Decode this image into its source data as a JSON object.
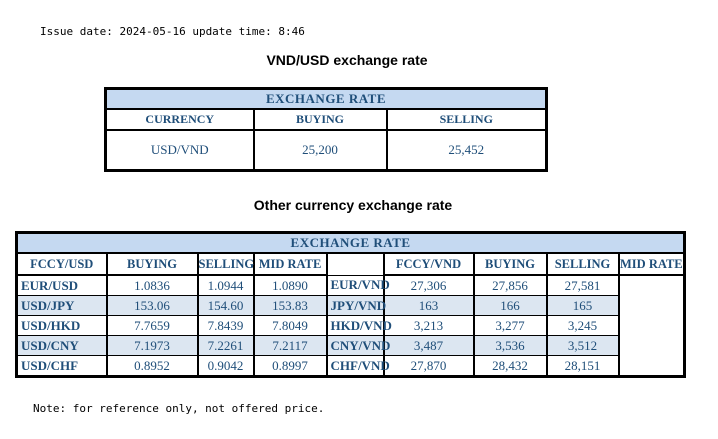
{
  "page": {
    "issue_line": "Issue date: 2024-05-16 update time: 8:46",
    "note_line": "Note: for reference only, not offered price."
  },
  "colors": {
    "header_bg": "#C5D9F1",
    "alt_row_bg": "#DCE6F1",
    "table_text": "#1F4E79",
    "border": "#000000"
  },
  "usd_table": {
    "title": "VND/USD exchange rate",
    "header": "EXCHANGE RATE",
    "columns": [
      "CURRENCY",
      "BUYING",
      "SELLING"
    ],
    "rows": [
      [
        "USD/VND",
        "25,200",
        "25,452"
      ]
    ]
  },
  "other_table": {
    "title": "Other currency exchange rate",
    "header": "EXCHANGE  RATE",
    "left": {
      "columns": [
        "FCCY/USD",
        "BUYING",
        "SELLING",
        "MID RATE"
      ],
      "rows": [
        [
          "EUR/USD",
          "1.0836",
          "1.0944",
          "1.0890"
        ],
        [
          "USD/JPY",
          "153.06",
          "154.60",
          "153.83"
        ],
        [
          "USD/HKD",
          "7.7659",
          "7.8439",
          "7.8049"
        ],
        [
          "USD/CNY",
          "7.1973",
          "7.2261",
          "7.2117"
        ],
        [
          "USD/CHF",
          "0.8952",
          "0.9042",
          "0.8997"
        ]
      ]
    },
    "right": {
      "columns": [
        "FCCY/VND",
        "BUYING",
        "SELLING",
        "MID RATE"
      ],
      "rows": [
        [
          "EUR/VND",
          "27,306",
          "27,856",
          "27,581"
        ],
        [
          "JPY/VND",
          "163",
          "166",
          "165"
        ],
        [
          "HKD/VND",
          "3,213",
          "3,277",
          "3,245"
        ],
        [
          "CNY/VND",
          "3,487",
          "3,536",
          "3,512"
        ],
        [
          "CHF/VND",
          "27,870",
          "28,432",
          "28,151"
        ]
      ]
    }
  }
}
